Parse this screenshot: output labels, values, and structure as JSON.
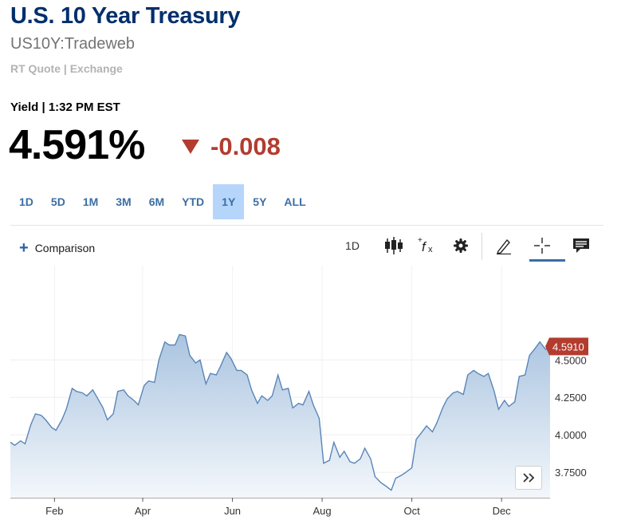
{
  "header": {
    "title": "U.S. 10 Year Treasury",
    "symbol": "US10Y:Tradeweb",
    "quote_source": "RT Quote | Exchange"
  },
  "quote": {
    "label": "Yield | 1:32 PM EST",
    "price": "4.591%",
    "change": "-0.008",
    "direction": "down"
  },
  "ranges": {
    "items": [
      "1D",
      "5D",
      "1M",
      "3M",
      "6M",
      "YTD",
      "1Y",
      "5Y",
      "ALL"
    ],
    "active": "1Y"
  },
  "toolbar": {
    "comparison_label": "Comparison",
    "interval_label": "1D",
    "icons": [
      "candlestick-icon",
      "studies-icon",
      "settings-icon",
      "draw-icon",
      "crosshair-icon",
      "comment-icon"
    ]
  },
  "colors": {
    "title": "#002f6c",
    "accent": "#3b6ea5",
    "down": "#b33c2f",
    "line": "#5a85b8",
    "fill_top": "#aac4e0",
    "fill_bottom": "#f3f7fb",
    "range_active": "#b6d5fb"
  },
  "chart_data": {
    "type": "area",
    "title": "",
    "xlabel": "",
    "ylabel": "",
    "x_ticks": [
      "Feb",
      "Apr",
      "Jun",
      "Aug",
      "Oct",
      "Dec"
    ],
    "y_ticks": [
      "3.7500",
      "4.0000",
      "4.2500",
      "4.5000"
    ],
    "ylim": [
      3.58,
      5.13
    ],
    "grid": true,
    "last_value_label": "4.5910",
    "series": [
      {
        "x": [
          "2024-01-02",
          "2024-01-05",
          "2024-01-09",
          "2024-01-12",
          "2024-01-16",
          "2024-01-19",
          "2024-01-23",
          "2024-01-26",
          "2024-01-30",
          "2024-02-02",
          "2024-02-06",
          "2024-02-09",
          "2024-02-13",
          "2024-02-16",
          "2024-02-20",
          "2024-02-23",
          "2024-02-27",
          "2024-03-01",
          "2024-03-05",
          "2024-03-08",
          "2024-03-12",
          "2024-03-15",
          "2024-03-19",
          "2024-03-22",
          "2024-03-26",
          "2024-03-29",
          "2024-04-02",
          "2024-04-05",
          "2024-04-09",
          "2024-04-12",
          "2024-04-16",
          "2024-04-19",
          "2024-04-23",
          "2024-04-26",
          "2024-04-30",
          "2024-05-03",
          "2024-05-07",
          "2024-05-10",
          "2024-05-14",
          "2024-05-17",
          "2024-05-21",
          "2024-05-24",
          "2024-05-28",
          "2024-05-31",
          "2024-06-04",
          "2024-06-07",
          "2024-06-11",
          "2024-06-14",
          "2024-06-18",
          "2024-06-21",
          "2024-06-25",
          "2024-06-28",
          "2024-07-02",
          "2024-07-05",
          "2024-07-09",
          "2024-07-12",
          "2024-07-16",
          "2024-07-19",
          "2024-07-23",
          "2024-07-26",
          "2024-07-30",
          "2024-08-02",
          "2024-08-06",
          "2024-08-09",
          "2024-08-13",
          "2024-08-16",
          "2024-08-20",
          "2024-08-23",
          "2024-08-27",
          "2024-08-30",
          "2024-09-03",
          "2024-09-06",
          "2024-09-10",
          "2024-09-13",
          "2024-09-17",
          "2024-09-20",
          "2024-09-24",
          "2024-09-27",
          "2024-10-01",
          "2024-10-04",
          "2024-10-08",
          "2024-10-11",
          "2024-10-15",
          "2024-10-18",
          "2024-10-22",
          "2024-10-25",
          "2024-10-29",
          "2024-11-01",
          "2024-11-05",
          "2024-11-08",
          "2024-11-12",
          "2024-11-15",
          "2024-11-19",
          "2024-11-22",
          "2024-11-26",
          "2024-11-29",
          "2024-12-03",
          "2024-12-06",
          "2024-12-10",
          "2024-12-13",
          "2024-12-17",
          "2024-12-20",
          "2024-12-24",
          "2024-12-27",
          "2024-12-31",
          "2025-01-03"
        ],
        "values": [
          3.95,
          3.93,
          3.96,
          3.94,
          4.07,
          4.14,
          4.13,
          4.1,
          4.05,
          4.03,
          4.1,
          4.17,
          4.31,
          4.29,
          4.28,
          4.26,
          4.3,
          4.25,
          4.18,
          4.1,
          4.14,
          4.29,
          4.3,
          4.26,
          4.23,
          4.2,
          4.33,
          4.36,
          4.35,
          4.5,
          4.62,
          4.6,
          4.6,
          4.67,
          4.66,
          4.53,
          4.48,
          4.5,
          4.34,
          4.41,
          4.4,
          4.46,
          4.55,
          4.51,
          4.43,
          4.43,
          4.4,
          4.3,
          4.21,
          4.26,
          4.23,
          4.26,
          4.4,
          4.3,
          4.31,
          4.18,
          4.21,
          4.2,
          4.29,
          4.2,
          4.11,
          3.81,
          3.83,
          3.95,
          3.85,
          3.89,
          3.82,
          3.81,
          3.84,
          3.91,
          3.84,
          3.72,
          3.68,
          3.66,
          3.63,
          3.71,
          3.73,
          3.75,
          3.78,
          3.97,
          4.02,
          4.06,
          4.02,
          4.08,
          4.18,
          4.24,
          4.28,
          4.29,
          4.27,
          4.4,
          4.43,
          4.41,
          4.39,
          4.41,
          4.29,
          4.17,
          4.23,
          4.19,
          4.22,
          4.39,
          4.4,
          4.53,
          4.58,
          4.62,
          4.57,
          4.59
        ]
      }
    ]
  }
}
